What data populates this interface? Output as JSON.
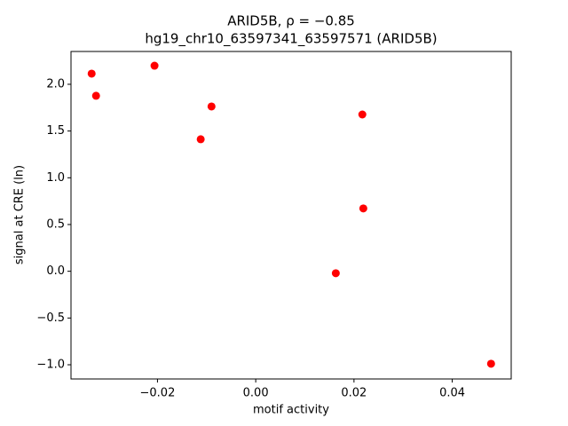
{
  "chart_data": {
    "type": "scatter",
    "title": "ARID5B, ρ = −0.85",
    "subtitle": "hg19_chr10_63597341_63597571 (ARID5B)",
    "x_label": "motif activity",
    "y_label": "signal at CRE (ln)",
    "color": "#ff0000",
    "x": [
      -0.0334,
      -0.0325,
      -0.0206,
      -0.009,
      -0.0112,
      0.0217,
      0.0219,
      0.0163,
      0.0479
    ],
    "values": [
      2.114,
      1.877,
      2.199,
      1.763,
      1.412,
      1.677,
      0.672,
      -0.021,
      -0.989
    ],
    "xlim": [
      -0.0376,
      0.052
    ],
    "ylim": [
      -1.152,
      2.351
    ],
    "xticks": [
      {
        "value": -0.02,
        "label": "−0.02"
      },
      {
        "value": 0,
        "label": "0.00"
      },
      {
        "value": 0.02,
        "label": "0.02"
      },
      {
        "value": 0.04,
        "label": "0.04"
      }
    ],
    "yticks": [
      {
        "value": -1,
        "label": "−1.0"
      },
      {
        "value": -0.5,
        "label": "−0.5"
      },
      {
        "value": 0,
        "label": "0.0"
      },
      {
        "value": 0.5,
        "label": "0.5"
      },
      {
        "value": 1,
        "label": "1.0"
      },
      {
        "value": 1.5,
        "label": "1.5"
      },
      {
        "value": 2,
        "label": "2.0"
      }
    ],
    "grid": false
  }
}
